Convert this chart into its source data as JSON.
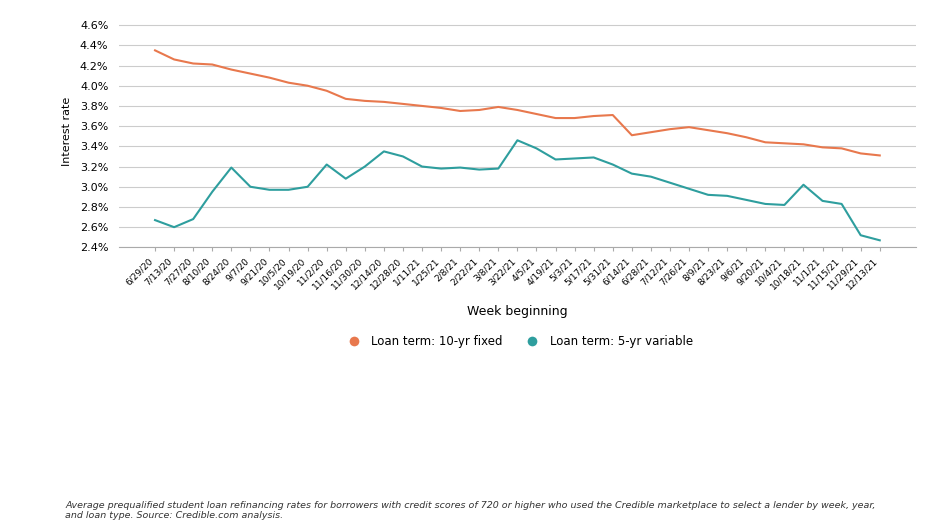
{
  "title": "",
  "xlabel": "Week beginning",
  "ylabel": "Interest rate",
  "background_color": "#ffffff",
  "grid_color": "#cccccc",
  "fixed_color": "#E8784D",
  "variable_color": "#2E9E9E",
  "legend_labels": [
    "Loan term: 10-yr fixed",
    "Loan term: 5-yr variable"
  ],
  "ylim": [
    0.024,
    0.047
  ],
  "yticks": [
    0.024,
    0.026,
    0.028,
    0.03,
    0.032,
    0.034,
    0.036,
    0.038,
    0.04,
    0.042,
    0.044,
    0.046
  ],
  "footnote": "Average prequalified student loan refinancing rates for borrowers with credit scores of 720 or higher who used the Credible marketplace to select a lender by week, year,\nand loan type. Source: Credible.com analysis.",
  "x_labels": [
    "6/29/20",
    "7/13/20",
    "7/27/20",
    "8/10/20",
    "8/24/20",
    "9/7/20",
    "9/21/20",
    "10/5/20",
    "10/19/20",
    "11/2/20",
    "11/16/20",
    "11/30/20",
    "12/14/20",
    "12/28/20",
    "1/11/21",
    "1/25/21",
    "2/8/21",
    "2/22/21",
    "3/8/21",
    "3/22/21",
    "4/5/21",
    "4/19/21",
    "5/3/21",
    "5/17/21",
    "5/31/21",
    "6/14/21",
    "6/28/21",
    "7/12/21",
    "7/26/21",
    "8/9/21",
    "8/23/21",
    "9/6/21",
    "9/20/21",
    "10/4/21",
    "10/18/21",
    "11/1/21",
    "11/15/21",
    "11/29/21",
    "12/13/21"
  ],
  "fixed_rates": [
    0.0435,
    0.0426,
    0.0422,
    0.0421,
    0.0416,
    0.0412,
    0.0408,
    0.0403,
    0.04,
    0.0395,
    0.0387,
    0.0385,
    0.0384,
    0.0382,
    0.038,
    0.0378,
    0.0375,
    0.0376,
    0.0379,
    0.0376,
    0.0372,
    0.0368,
    0.0368,
    0.037,
    0.0371,
    0.0351,
    0.0354,
    0.0357,
    0.0359,
    0.0356,
    0.0353,
    0.0349,
    0.0344,
    0.0343,
    0.0342,
    0.0339,
    0.0338,
    0.0333,
    0.0331
  ],
  "variable_rates": [
    0.0267,
    0.026,
    0.0268,
    0.0295,
    0.0319,
    0.03,
    0.0297,
    0.0297,
    0.03,
    0.0322,
    0.0308,
    0.032,
    0.0335,
    0.033,
    0.032,
    0.0318,
    0.0319,
    0.0317,
    0.0318,
    0.0346,
    0.0338,
    0.0327,
    0.0328,
    0.0329,
    0.0322,
    0.0313,
    0.031,
    0.0304,
    0.0298,
    0.0292,
    0.0291,
    0.0287,
    0.0283,
    0.0282,
    0.0302,
    0.0286,
    0.0283,
    0.0252,
    0.0247
  ]
}
